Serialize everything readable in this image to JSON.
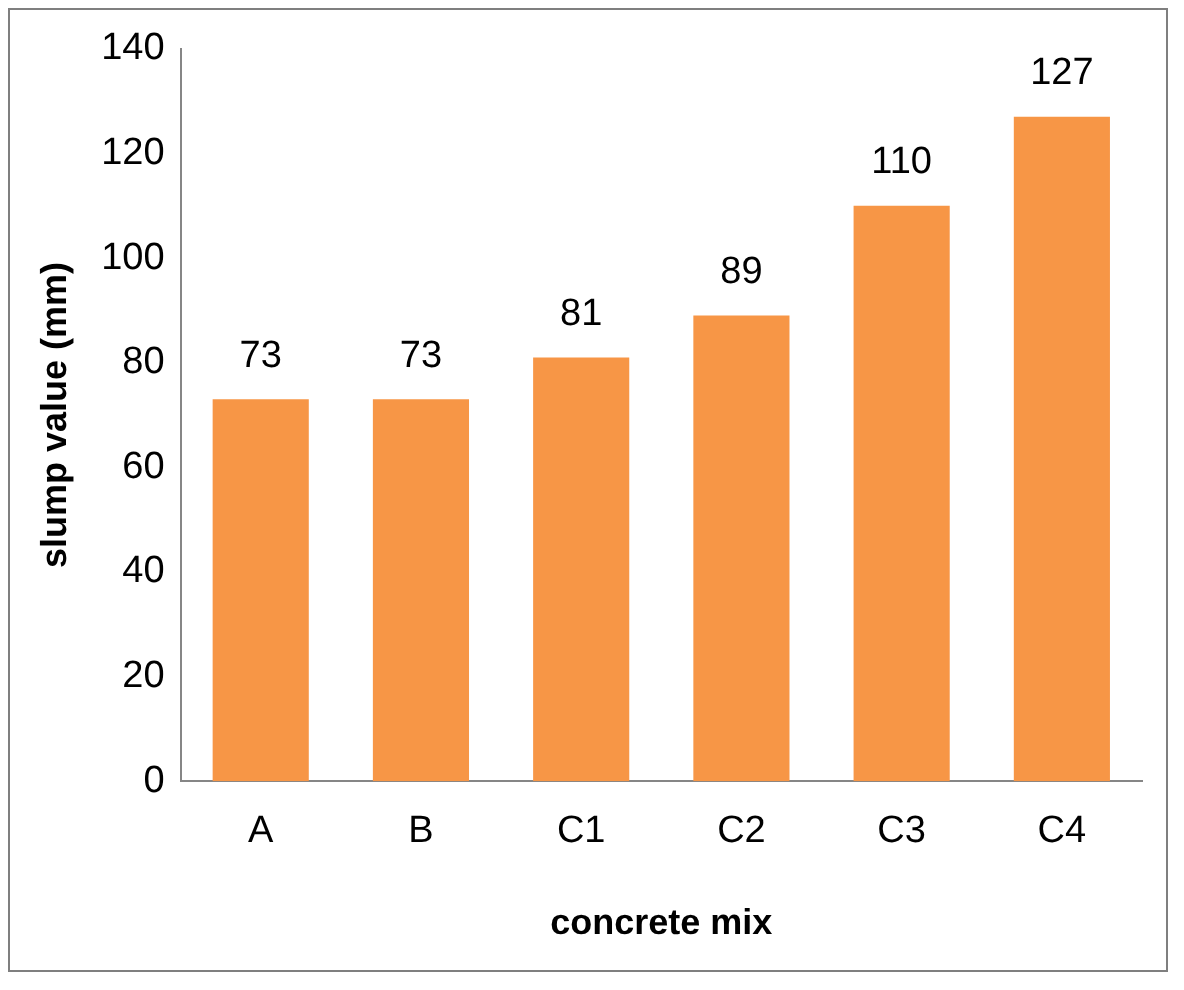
{
  "chart_data": {
    "type": "bar",
    "xlabel": "concrete mix",
    "ylabel": "slump value (mm)",
    "categories": [
      "A",
      "B",
      "C1",
      "C2",
      "C3",
      "C4"
    ],
    "values": [
      73,
      73,
      81,
      89,
      110,
      127
    ],
    "color": "#f79646",
    "ylim": [
      0,
      140
    ],
    "yticks": [
      0,
      20,
      40,
      60,
      80,
      100,
      120,
      140
    ],
    "grid": false,
    "legend": false,
    "data_labels": true
  }
}
